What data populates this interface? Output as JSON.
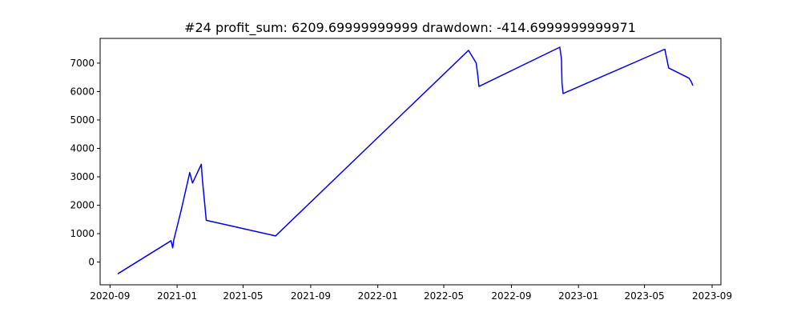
{
  "chart_data": {
    "type": "line",
    "title": "#24   profit_sum: 6209.69999999999 drawdown: -414.6999999999971",
    "xlabel": "",
    "ylabel": "",
    "x_axis_type": "date",
    "xlim": [
      "2020-08-14",
      "2023-09-17"
    ],
    "ylim": [
      -800,
      7870
    ],
    "grid": false,
    "x_ticks": [
      "2020-09",
      "2021-01",
      "2021-05",
      "2021-09",
      "2022-01",
      "2022-05",
      "2022-09",
      "2023-01",
      "2023-05",
      "2023-09"
    ],
    "y_ticks": [
      0,
      1000,
      2000,
      3000,
      4000,
      5000,
      6000,
      7000
    ],
    "series": [
      {
        "color": "#0000ff",
        "x": [
          "2020-09-15",
          "2020-12-21",
          "2020-12-24",
          "2020-12-26",
          "2021-01-08",
          "2021-01-24",
          "2021-01-29",
          "2021-02-14",
          "2021-02-16",
          "2021-02-19",
          "2021-02-23",
          "2021-06-29",
          "2022-06-15",
          "2022-06-29",
          "2022-07-02",
          "2022-07-04",
          "2022-11-28",
          "2022-12-01",
          "2022-12-02",
          "2022-12-04",
          "2023-06-07",
          "2023-06-14",
          "2023-07-21",
          "2023-07-25",
          "2023-07-28"
        ],
        "y": [
          -415,
          750,
          500,
          780,
          1790,
          3150,
          2780,
          3440,
          2900,
          2300,
          1470,
          920,
          7450,
          7000,
          6550,
          6180,
          7560,
          7150,
          6300,
          5930,
          7490,
          6830,
          6470,
          6350,
          6210
        ]
      }
    ]
  }
}
